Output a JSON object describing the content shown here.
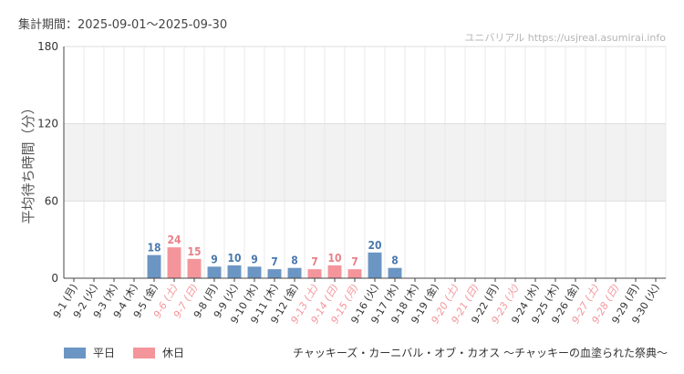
{
  "period_text": "集計期間：2025-09-01〜2025-09-30",
  "watermark_text": "ユニバリアル https://usjreal.asumirai.info",
  "attraction_name": "チャッキーズ・カーニバル・オブ・カオス 〜チャッキーの血塗られた祭典〜",
  "colors": {
    "weekday": "#6b96c4",
    "holiday": "#f4959b",
    "weekday_label": "#4a79ad",
    "holiday_label": "#e88088",
    "band": "#f2f2f2",
    "grid": "#dddddd"
  },
  "chart_data": {
    "type": "bar",
    "ylabel": "平均待ち時間（分）",
    "ylim": [
      0,
      180
    ],
    "yticks": [
      0,
      60,
      120,
      180
    ],
    "grid": true,
    "legend_position": "bottom-left",
    "legend": [
      {
        "label": "平日",
        "kind": "weekday"
      },
      {
        "label": "休日",
        "kind": "holiday"
      }
    ],
    "categories": [
      "9-1 (月)",
      "9-2 (火)",
      "9-3 (水)",
      "9-4 (木)",
      "9-5 (金)",
      "9-6 (土)",
      "9-7 (日)",
      "9-8 (月)",
      "9-9 (火)",
      "9-10 (水)",
      "9-11 (木)",
      "9-12 (金)",
      "9-13 (土)",
      "9-14 (日)",
      "9-15 (月)",
      "9-16 (火)",
      "9-17 (水)",
      "9-18 (木)",
      "9-19 (金)",
      "9-20 (土)",
      "9-21 (日)",
      "9-22 (月)",
      "9-23 (火)",
      "9-24 (水)",
      "9-25 (木)",
      "9-26 (金)",
      "9-27 (土)",
      "9-28 (日)",
      "9-29 (月)",
      "9-30 (火)"
    ],
    "day_types": [
      "weekday",
      "weekday",
      "weekday",
      "weekday",
      "weekday",
      "holiday",
      "holiday",
      "weekday",
      "weekday",
      "weekday",
      "weekday",
      "weekday",
      "holiday",
      "holiday",
      "holiday",
      "weekday",
      "weekday",
      "weekday",
      "weekday",
      "holiday",
      "holiday",
      "weekday",
      "holiday",
      "weekday",
      "weekday",
      "weekday",
      "holiday",
      "holiday",
      "weekday",
      "weekday"
    ],
    "values": [
      null,
      null,
      null,
      null,
      18,
      24,
      15,
      9,
      10,
      9,
      7,
      8,
      7,
      10,
      7,
      20,
      8,
      null,
      null,
      null,
      null,
      null,
      null,
      null,
      null,
      null,
      null,
      null,
      null,
      null
    ]
  }
}
